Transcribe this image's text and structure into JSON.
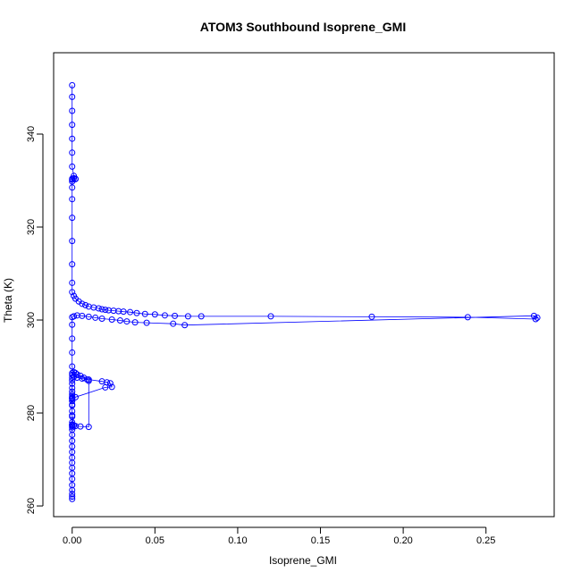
{
  "chart_data": {
    "type": "scatter",
    "title": "ATOM3 Southbound Isoprene_GMI",
    "xlabel": "Isoprene_GMI",
    "ylabel": "Theta (K)",
    "xlim": [
      -0.0112,
      0.2912
    ],
    "ylim": [
      257.7,
      357.5
    ],
    "xticks": [
      0.0,
      0.05,
      0.1,
      0.15,
      0.2,
      0.25
    ],
    "xtick_labels": [
      "0.00",
      "0.05",
      "0.10",
      "0.15",
      "0.20",
      "0.25"
    ],
    "yticks": [
      260,
      280,
      300,
      320,
      340
    ],
    "ytick_labels": [
      "260",
      "280",
      "300",
      "320",
      "340"
    ],
    "point_style": "open-circle",
    "line": true,
    "color": "#0000ff",
    "grid": false,
    "series": [
      {
        "x": [
          0.0,
          0.0,
          0.0,
          0.0,
          0.0,
          0.0,
          0.0,
          0.0,
          0.0,
          0.0,
          0.0,
          0.0,
          0.0,
          0.0,
          0.0,
          0.0,
          0.0,
          0.0,
          0.0,
          0.0,
          0.0,
          0.0,
          0.0,
          0.0,
          0.0,
          0.0,
          0.0,
          0.0,
          0.0,
          0.0,
          0.0,
          0.0,
          0.0,
          0.0,
          0.0,
          0.001,
          0.002,
          0.003,
          0.005,
          0.007,
          0.009,
          0.01,
          0.01,
          0.005,
          0.002,
          0.001,
          0.0,
          0.0,
          0.0,
          0.0,
          0.0,
          0.0,
          0.002,
          0.02,
          0.024,
          0.023,
          0.021,
          0.018,
          0.01,
          0.006,
          0.003,
          0.001,
          0.0,
          0.0,
          0.0,
          0.0,
          0.0,
          0.001,
          0.003,
          0.006,
          0.01,
          0.014,
          0.018,
          0.024,
          0.029,
          0.033,
          0.038,
          0.045,
          0.061,
          0.068,
          0.279,
          0.281,
          0.28,
          0.239,
          0.181,
          0.12,
          0.078,
          0.07,
          0.062,
          0.056,
          0.05,
          0.044,
          0.039,
          0.035,
          0.031,
          0.028,
          0.025,
          0.022,
          0.02,
          0.018,
          0.016,
          0.013,
          0.01,
          0.008,
          0.006,
          0.004,
          0.002,
          0.001,
          0.0,
          0.0,
          0.0,
          0.0,
          0.0,
          0.0,
          0.0,
          0.0,
          0.0,
          0.0,
          0.001,
          0.002,
          0.002,
          0.001,
          0.0,
          0.0,
          0.0,
          0.0,
          0.0,
          0.0,
          0.0
        ],
        "y": [
          261.5,
          262.0,
          262.6,
          263.4,
          264.5,
          265.8,
          267.0,
          268.2,
          269.3,
          270.4,
          271.6,
          272.8,
          274.0,
          275.3,
          276.4,
          276.9,
          277.2,
          277.4,
          277.5,
          277.5,
          278.0,
          279.2,
          280.4,
          281.6,
          282.6,
          283.2,
          283.6,
          284.0,
          284.6,
          285.4,
          286.3,
          287.0,
          287.6,
          288.2,
          288.6,
          288.8,
          288.6,
          288.3,
          288.0,
          287.6,
          287.2,
          286.9,
          277.0,
          277.1,
          277.2,
          277.3,
          279.5,
          281.8,
          282.6,
          283.0,
          283.2,
          283.3,
          283.4,
          285.5,
          285.6,
          286.4,
          286.6,
          286.8,
          287.2,
          287.4,
          287.6,
          287.8,
          290.0,
          293.0,
          296.0,
          299.0,
          300.6,
          300.8,
          301.0,
          300.9,
          300.7,
          300.5,
          300.3,
          300.1,
          299.9,
          299.7,
          299.5,
          299.4,
          299.2,
          298.9,
          300.9,
          300.5,
          300.2,
          300.6,
          300.7,
          300.8,
          300.8,
          300.8,
          300.9,
          301.0,
          301.2,
          301.3,
          301.5,
          301.7,
          301.8,
          301.9,
          302.0,
          302.1,
          302.2,
          302.3,
          302.5,
          302.7,
          302.9,
          303.2,
          303.5,
          304.0,
          304.6,
          305.2,
          306.0,
          308.0,
          312.0,
          317.0,
          322.0,
          326.0,
          328.5,
          329.8,
          330.2,
          330.4,
          330.5,
          330.4,
          330.3,
          331.0,
          333.0,
          336.0,
          339.0,
          342.0,
          345.0,
          348.0,
          350.5
        ]
      }
    ]
  }
}
